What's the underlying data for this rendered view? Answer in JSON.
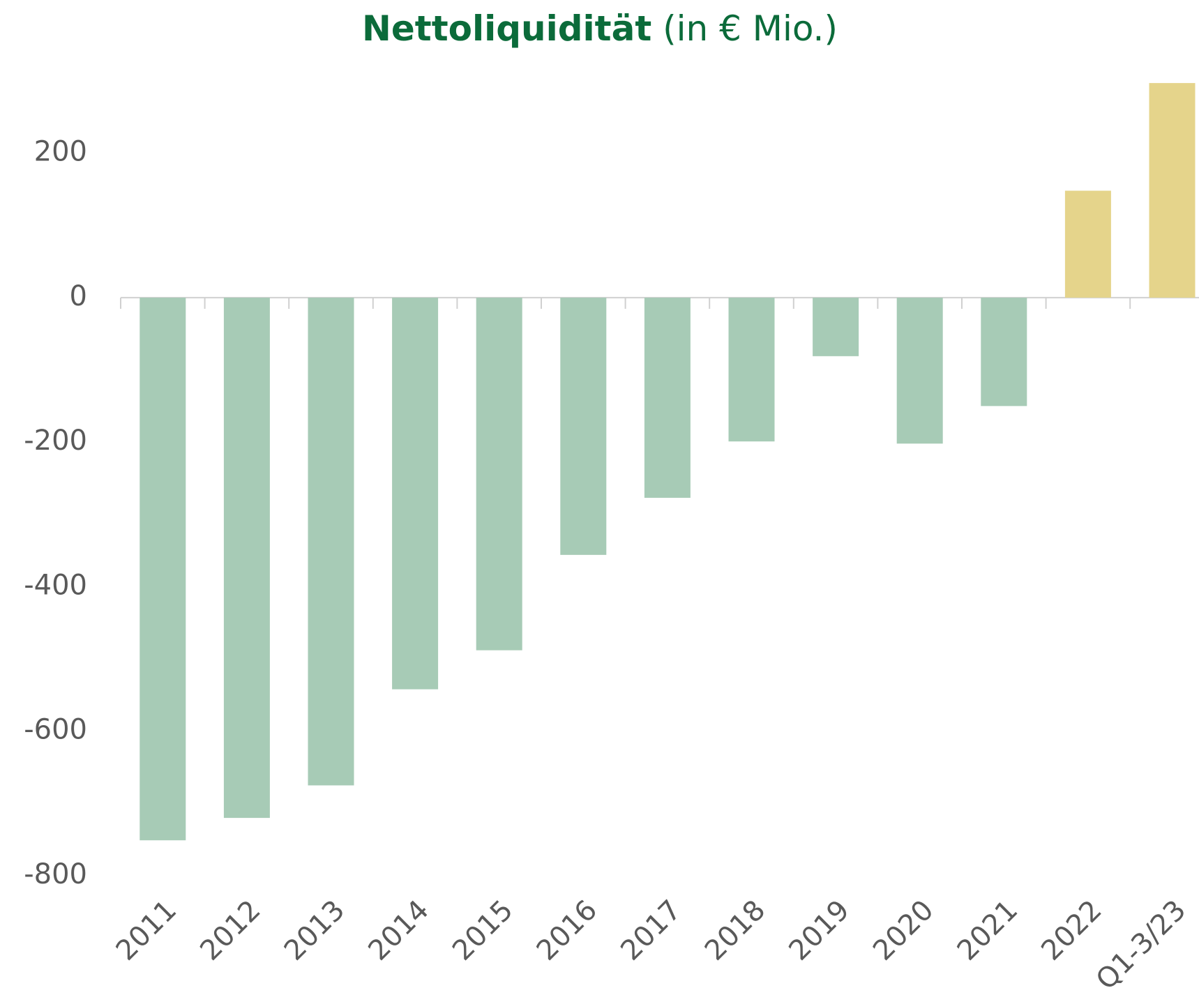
{
  "chart_data": {
    "type": "bar",
    "title": "Nettoliquidität",
    "title_suffix": "(in € Mio.)",
    "categories": [
      "2011",
      "2012",
      "2013",
      "2014",
      "2015",
      "2016",
      "2017",
      "2018",
      "2019",
      "2020",
      "2021",
      "2022",
      "Q1-3/23"
    ],
    "values": [
      -751,
      -720,
      -675,
      -542,
      -488,
      -356,
      -277,
      -199,
      -81,
      -202,
      -150,
      148,
      297
    ],
    "colors": [
      "#a7cbb6",
      "#a7cbb6",
      "#a7cbb6",
      "#a7cbb6",
      "#a7cbb6",
      "#a7cbb6",
      "#a7cbb6",
      "#a7cbb6",
      "#a7cbb6",
      "#a7cbb6",
      "#a7cbb6",
      "#e5d48b",
      "#e5d48b"
    ],
    "ylim": [
      -800,
      300
    ],
    "yticks": [
      -800,
      -600,
      -400,
      -200,
      0,
      200
    ],
    "grid": false
  }
}
